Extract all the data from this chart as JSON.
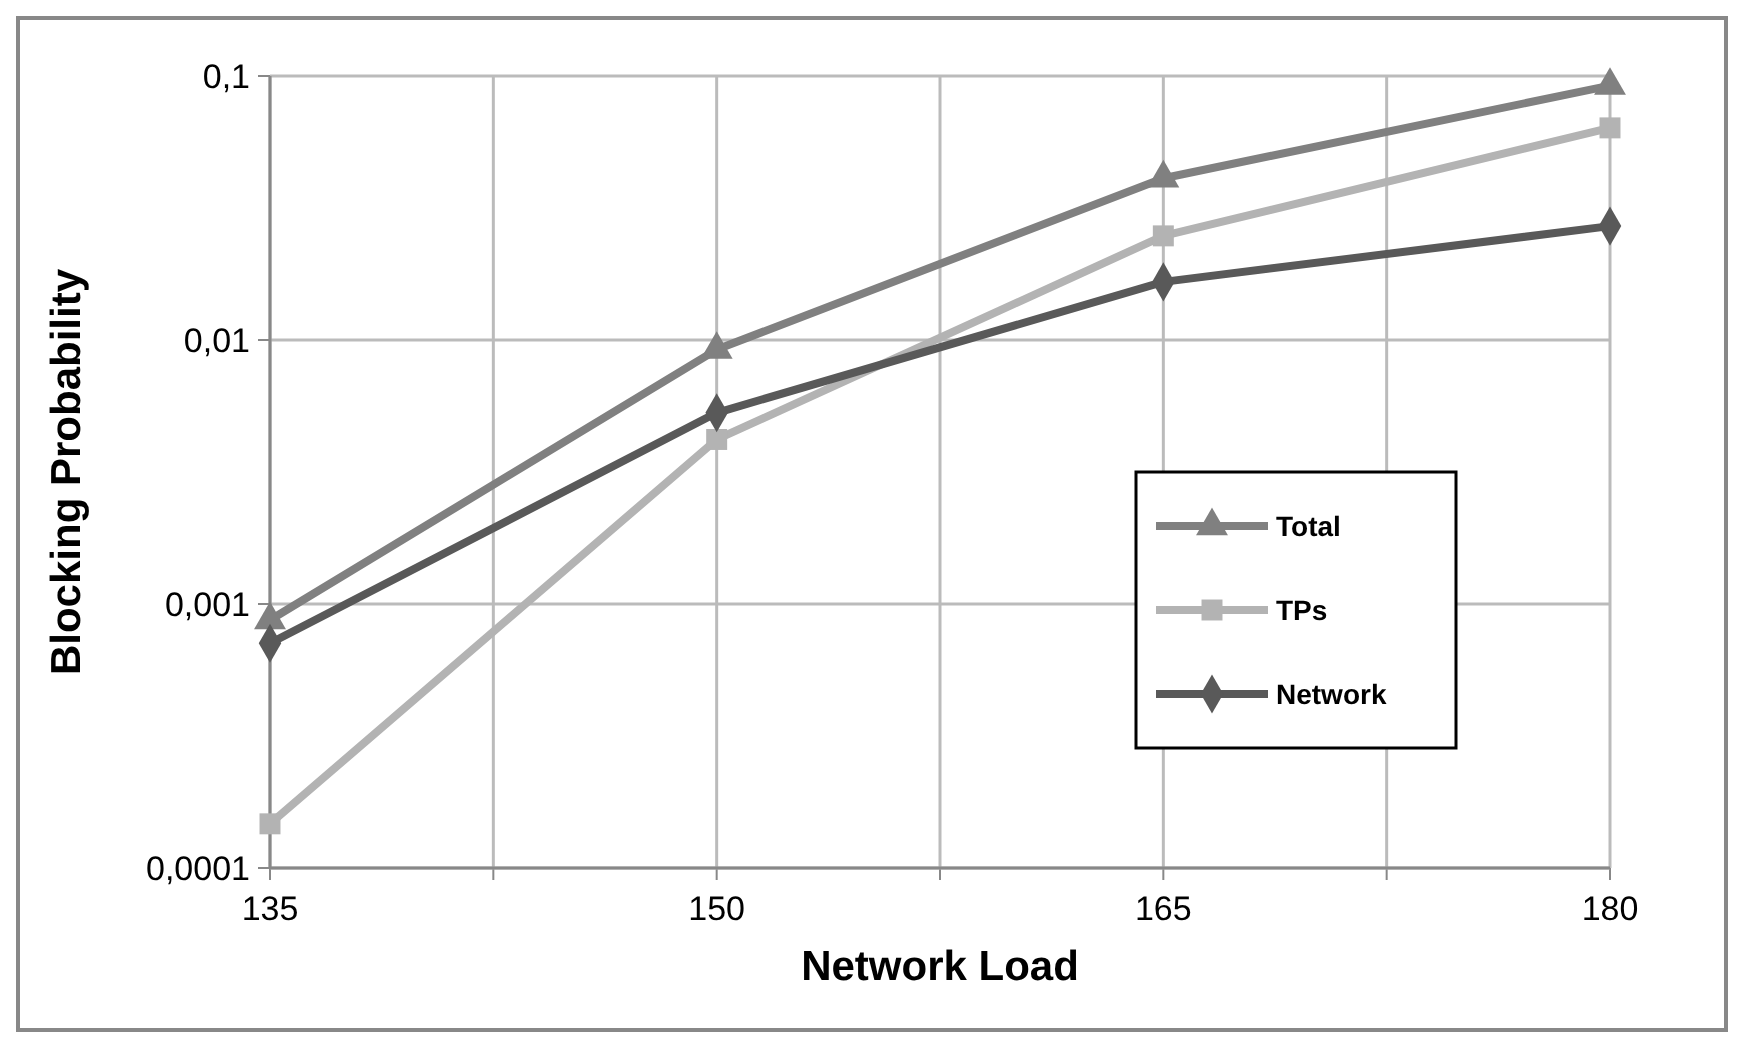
{
  "chart_data": {
    "type": "line",
    "xlabel": "Network Load",
    "ylabel": "Blocking Probability",
    "x": [
      135,
      150,
      165,
      180
    ],
    "xlim": [
      135,
      180
    ],
    "xticks": [
      135,
      {
        "value": 142.5,
        "label": null
      },
      150,
      {
        "value": 157.5,
        "label": null
      },
      165,
      {
        "value": 172.5,
        "label": null
      },
      180
    ],
    "ylim": [
      0.0001,
      0.1
    ],
    "yticks": [
      {
        "value": 0.0001,
        "label": "0,0001"
      },
      {
        "value": 0.001,
        "label": "0,001"
      },
      {
        "value": 0.01,
        "label": "0,01"
      },
      {
        "value": 0.1,
        "label": "0,1"
      }
    ],
    "log": "y",
    "grid": true,
    "legend": "right",
    "line_style": "solid",
    "series": [
      {
        "name": "Total",
        "color": "#808080",
        "marker": "triangle",
        "values": [
          0.00087,
          0.0092,
          0.041,
          0.092
        ]
      },
      {
        "name": "TPs",
        "color": "#b3b3b3",
        "marker": "square",
        "values": [
          0.000147,
          0.0042,
          0.0248,
          0.0636
        ]
      },
      {
        "name": "Network",
        "color": "#595959",
        "marker": "diamond",
        "values": [
          0.00071,
          0.0053,
          0.0166,
          0.027
        ]
      }
    ]
  }
}
